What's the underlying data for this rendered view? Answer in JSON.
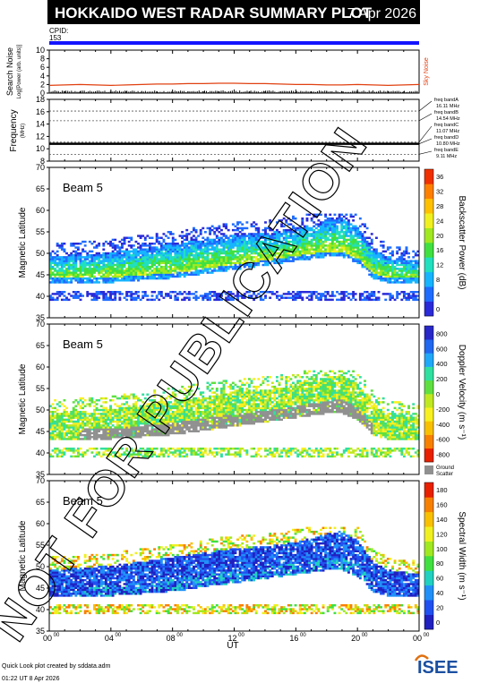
{
  "header": {
    "title": "HOKKAIDO WEST RADAR SUMMARY PLOT",
    "date": "7 Apr 2026"
  },
  "cpid": {
    "label": "CPID:",
    "value": "153"
  },
  "footer": {
    "note": "Quick Look plot created by sddata.adm",
    "timestamp": "01:22 UT  8 Apr 2026",
    "logo": "ISEE"
  },
  "watermark": "NOT FOR PUBLICATION",
  "colors": {
    "cpid_bar": "#1414ff",
    "noise_line": "#e04010",
    "ground_scatter": "#909090"
  },
  "chart_data": [
    {
      "type": "line",
      "panel": "noise",
      "ylabel": "Search Noise",
      "ylabel_sub": "Log[Power (arb. units)]",
      "side_label": "Sky Noise",
      "ylim": [
        0,
        10
      ],
      "yticks": [
        "0",
        "2",
        "4",
        "6",
        "8",
        "10"
      ],
      "series": [
        {
          "values": [
            1.8,
            1.9,
            2.0,
            1.9,
            1.8,
            1.9,
            2.0,
            2.1,
            2.1,
            2.2,
            2.2,
            2.3,
            2.3,
            2.2,
            2.2,
            2.1,
            2.0,
            2.0,
            1.9,
            1.9,
            2.0,
            1.9,
            1.8,
            1.9,
            2.0
          ]
        }
      ]
    },
    {
      "type": "line",
      "panel": "frequency",
      "ylabel": "Frequency",
      "ylabel_sub": "(MHz)",
      "ylim": [
        8,
        18
      ],
      "yticks": [
        "8",
        "10",
        "12",
        "14",
        "16",
        "18"
      ],
      "bands": [
        "freq bandA 16.11 MHz",
        "freq bandB 14.54 MHz",
        "freq bandC 11.07 MHz",
        "freq bandD 10.80 MHz",
        "freq bandE 9.11 MHz"
      ],
      "band_values": [
        16.11,
        14.54,
        11.07,
        10.8,
        9.11
      ],
      "operating_mhz": 10.8
    },
    {
      "type": "heatmap",
      "panel": "power",
      "label": "Beam  5",
      "ylabel": "Magnetic Latitude",
      "ylim": [
        35,
        70
      ],
      "yticks": [
        "35",
        "40",
        "45",
        "50",
        "55",
        "60",
        "65",
        "70"
      ],
      "cbar_label": "Backscatter Power (dB)",
      "cbar_ticks": [
        "0",
        "4",
        "8",
        "12",
        "16",
        "20",
        "24",
        "28",
        "32",
        "36"
      ]
    },
    {
      "type": "heatmap",
      "panel": "velocity",
      "label": "Beam  5",
      "ylabel": "Magnetic Latitude",
      "ylim": [
        35,
        70
      ],
      "yticks": [
        "35",
        "40",
        "45",
        "50",
        "55",
        "60",
        "65",
        "70"
      ],
      "cbar_label": "Doppler Velocity (m s⁻¹)",
      "cbar_ticks": [
        "800",
        "600",
        "400",
        "200",
        "0",
        "-200",
        "-400",
        "-600",
        "-800"
      ],
      "ground_label": [
        "Ground",
        "Scatter"
      ]
    },
    {
      "type": "heatmap",
      "panel": "width",
      "label": "Beam  5",
      "ylabel": "Magnetic Latitude",
      "ylim": [
        35,
        70
      ],
      "yticks": [
        "35",
        "40",
        "45",
        "50",
        "55",
        "60",
        "65",
        "70"
      ],
      "cbar_label": "Spectral Width (m s⁻¹)",
      "cbar_ticks": [
        "0",
        "20",
        "40",
        "60",
        "80",
        "100",
        "120",
        "140",
        "160",
        "180"
      ]
    }
  ],
  "xaxis": {
    "label": "UT",
    "ticks": [
      {
        "h": "00",
        "m": "00"
      },
      {
        "h": "04",
        "m": "00"
      },
      {
        "h": "08",
        "m": "00"
      },
      {
        "h": "12",
        "m": "00"
      },
      {
        "h": "16",
        "m": "00"
      },
      {
        "h": "20",
        "m": "00"
      },
      {
        "h": "00",
        "m": "00"
      }
    ]
  },
  "scatter_envelope": {
    "hours": [
      0,
      2,
      4,
      6,
      8,
      10,
      12,
      14,
      16,
      17,
      18,
      19,
      20,
      21,
      22,
      24
    ],
    "lower": [
      43,
      43,
      43,
      43.5,
      44,
      45,
      46,
      47,
      48,
      48.5,
      49,
      49,
      47.5,
      44,
      43,
      43
    ],
    "upper": [
      49,
      49.5,
      50,
      51,
      52,
      53,
      54,
      54.5,
      55.5,
      56.5,
      57.5,
      58,
      56,
      51,
      49,
      48
    ]
  }
}
